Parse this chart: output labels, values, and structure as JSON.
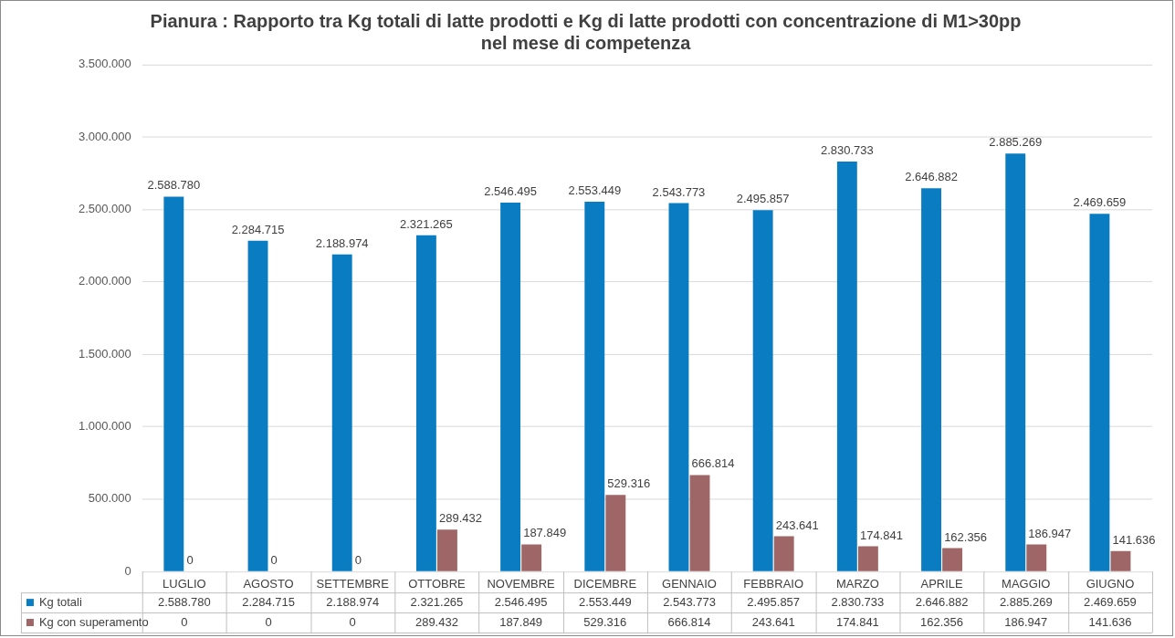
{
  "chart_data": {
    "type": "bar",
    "title": "Pianura : Rapporto tra Kg totali di latte prodotti e Kg di latte prodotti con concentrazione di M1>30pp nel mese di competenza",
    "categories": [
      "LUGLIO",
      "AGOSTO",
      "SETTEMBRE",
      "OTTOBRE",
      "NOVEMBRE",
      "DICEMBRE",
      "GENNAIO",
      "FEBBRAIO",
      "MARZO",
      "APRILE",
      "MAGGIO",
      "GIUGNO"
    ],
    "series": [
      {
        "name": "Kg totali",
        "color": "#0a7cc1",
        "values": [
          2588780,
          2284715,
          2188974,
          2321265,
          2546495,
          2553449,
          2543773,
          2495857,
          2830733,
          2646882,
          2885269,
          2469659
        ],
        "value_labels": [
          "2.588.780",
          "2.284.715",
          "2.188.974",
          "2.321.265",
          "2.546.495",
          "2.553.449",
          "2.543.773",
          "2.495.857",
          "2.830.733",
          "2.646.882",
          "2.885.269",
          "2.469.659"
        ]
      },
      {
        "name": "Kg con superamento",
        "color": "#9e6666",
        "values": [
          0,
          0,
          0,
          289432,
          187849,
          529316,
          666814,
          243641,
          174841,
          162356,
          186947,
          141636
        ],
        "value_labels": [
          "0",
          "0",
          "0",
          "289.432",
          "187.849",
          "529.316",
          "666.814",
          "243.641",
          "174.841",
          "162.356",
          "186.947",
          "141.636"
        ]
      }
    ],
    "ylim": [
      0,
      3500000
    ],
    "yticks": [
      0,
      {
        "value": 500000,
        "label": "500.000"
      },
      {
        "value": 1000000,
        "label": "1.000.000"
      },
      {
        "value": 1500000,
        "label": "1.500.000"
      },
      {
        "value": 2000000,
        "label": "2.000.000"
      },
      {
        "value": 2500000,
        "label": "2.500.000"
      },
      {
        "value": 3000000,
        "label": "3.000.000"
      },
      {
        "value": 3500000,
        "label": "3.500.000"
      }
    ],
    "grid": "y",
    "legend": "bottom"
  }
}
